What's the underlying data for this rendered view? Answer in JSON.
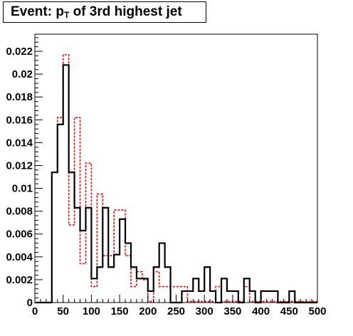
{
  "chart_data": {
    "type": "histogram",
    "title": {
      "prefix": "Event: p",
      "subscript": "T",
      "suffix": " of 3rd highest jet"
    },
    "xlim": [
      0,
      500
    ],
    "ylim": [
      0,
      0.0235
    ],
    "bin_width": 10,
    "x_ticks": [
      0,
      50,
      100,
      150,
      200,
      250,
      300,
      350,
      400,
      450,
      500
    ],
    "x_tick_labels": [
      "0",
      "50",
      "100",
      "150",
      "200",
      "250",
      "300",
      "350",
      "400",
      "450",
      "500"
    ],
    "y_ticks": [
      0,
      0.002,
      0.004,
      0.006,
      0.008,
      0.01,
      0.012,
      0.014,
      0.016,
      0.018,
      0.02,
      0.022
    ],
    "y_tick_labels": [
      "0",
      "0.002",
      "0.004",
      "0.006",
      "0.008",
      "0.01",
      "0.012",
      "0.014",
      "0.016",
      "0.018",
      "0.02",
      "0.022"
    ],
    "grid": false,
    "legend": "none",
    "series": [
      {
        "style": "solid",
        "color": "#000000",
        "x": [
          0,
          10,
          20,
          30,
          40,
          50,
          60,
          70,
          80,
          90,
          100,
          110,
          120,
          130,
          140,
          150,
          160,
          170,
          180,
          190,
          200,
          210,
          220,
          230,
          240,
          250,
          260,
          270,
          280,
          290,
          300,
          310,
          320,
          330,
          340,
          350,
          360,
          370,
          380,
          390,
          400,
          410,
          420,
          430,
          440,
          450,
          460,
          470,
          480,
          490
        ],
        "values": [
          0,
          0,
          0,
          0.0114,
          0.0156,
          0.0208,
          0.0114,
          0.0083,
          0.0063,
          0.0083,
          0.0021,
          0.0031,
          0.0083,
          0.0031,
          0.0042,
          0.0073,
          0.0052,
          0.0031,
          0.0021,
          0.0021,
          0.001,
          0.0031,
          0.0052,
          0.0031,
          0,
          0,
          0.001,
          0.001,
          0.0021,
          0.001,
          0.0031,
          0.001,
          0,
          0.0021,
          0.001,
          0.001,
          0,
          0.0021,
          0.001,
          0,
          0.001,
          0.001,
          0.001,
          0,
          0,
          0.001,
          0,
          0,
          0,
          0
        ]
      },
      {
        "style": "dashed",
        "color": "#ee0000",
        "x": [
          0,
          10,
          20,
          30,
          40,
          50,
          60,
          70,
          80,
          90,
          100,
          110,
          120,
          130,
          140,
          150,
          160,
          170,
          180,
          190,
          200,
          210,
          220,
          230,
          240,
          250,
          260,
          270,
          280,
          290,
          300,
          310,
          320,
          330,
          340,
          350,
          360,
          370,
          380,
          390,
          400,
          410,
          420,
          430,
          440,
          450,
          460,
          470,
          480,
          490
        ],
        "values": [
          0,
          0,
          0,
          0.0114,
          0.0162,
          0.0217,
          0.0068,
          0.0162,
          0.0034,
          0.0122,
          0.0014,
          0.0095,
          0.0041,
          0.0041,
          0.0081,
          0.0081,
          0.0041,
          0.0014,
          0.0027,
          0.002,
          0.0001,
          0.0027,
          0.0014,
          0.0014,
          0.0014,
          0.0014,
          0.0014,
          0.0001,
          0.0001,
          0.0001,
          0.0001,
          0.0001,
          0.0014,
          0.0001,
          0.0001,
          0.0001,
          0.0001,
          0.0014,
          0.0001,
          0.0001,
          0.0001,
          0.0001,
          0.0001,
          0.0001,
          0.0001,
          0.0001,
          0.0001,
          0.0001,
          0.0001,
          0.0001
        ]
      }
    ]
  }
}
